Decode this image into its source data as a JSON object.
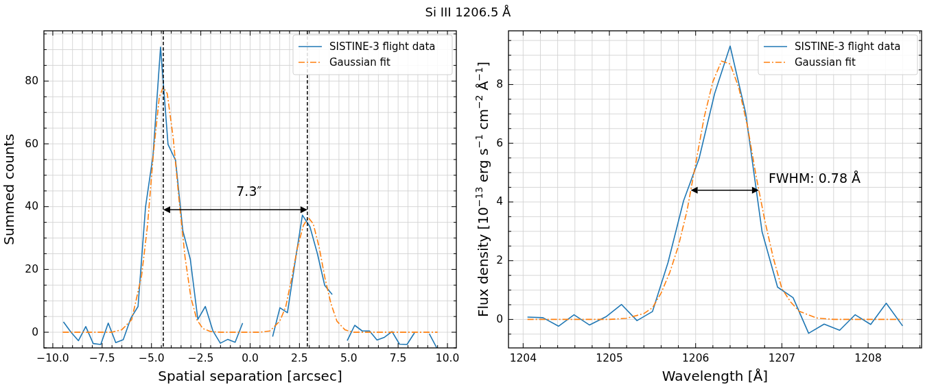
{
  "chart_data": [
    {
      "type": "line",
      "title": "Si III 1206.5 Å",
      "xlabel": "Spatial separation [arcsec]",
      "ylabel": "Summed counts",
      "xlim": [
        -10.45,
        10.45
      ],
      "ylim": [
        -5,
        96
      ],
      "xticks": [
        {
          "value": -10,
          "label": "−10.0"
        },
        {
          "value": -9.5,
          "label": null
        },
        {
          "value": -9,
          "label": null
        },
        {
          "value": -8.5,
          "label": null
        },
        {
          "value": -8,
          "label": null
        },
        {
          "value": -7.5,
          "label": "−7.5"
        },
        {
          "value": -7,
          "label": null
        },
        {
          "value": -6.5,
          "label": null
        },
        {
          "value": -6,
          "label": null
        },
        {
          "value": -5.5,
          "label": null
        },
        {
          "value": -5,
          "label": "−5.0"
        },
        {
          "value": -4.5,
          "label": null
        },
        {
          "value": -4,
          "label": null
        },
        {
          "value": -3.5,
          "label": null
        },
        {
          "value": -3,
          "label": null
        },
        {
          "value": -2.5,
          "label": "−2.5"
        },
        {
          "value": -2,
          "label": null
        },
        {
          "value": -1.5,
          "label": null
        },
        {
          "value": -1,
          "label": null
        },
        {
          "value": -0.5,
          "label": null
        },
        {
          "value": 0,
          "label": "0.0"
        },
        {
          "value": 0.5,
          "label": null
        },
        {
          "value": 1,
          "label": null
        },
        {
          "value": 1.5,
          "label": null
        },
        {
          "value": 2,
          "label": null
        },
        {
          "value": 2.5,
          "label": "2.5"
        },
        {
          "value": 3,
          "label": null
        },
        {
          "value": 3.5,
          "label": null
        },
        {
          "value": 4,
          "label": null
        },
        {
          "value": 4.5,
          "label": null
        },
        {
          "value": 5,
          "label": "5.0"
        },
        {
          "value": 5.5,
          "label": null
        },
        {
          "value": 6,
          "label": null
        },
        {
          "value": 6.5,
          "label": null
        },
        {
          "value": 7,
          "label": null
        },
        {
          "value": 7.5,
          "label": "7.5"
        },
        {
          "value": 8,
          "label": null
        },
        {
          "value": 8.5,
          "label": null
        },
        {
          "value": 9,
          "label": null
        },
        {
          "value": 9.5,
          "label": null
        },
        {
          "value": 10,
          "label": "10.0"
        }
      ],
      "yticks": [
        {
          "value": -5,
          "label": null
        },
        0,
        {
          "value": 5,
          "label": null
        },
        {
          "value": 10,
          "label": null
        },
        {
          "value": 15,
          "label": null
        },
        20,
        {
          "value": 25,
          "label": null
        },
        {
          "value": 30,
          "label": null
        },
        {
          "value": 35,
          "label": null
        },
        40,
        {
          "value": 45,
          "label": null
        },
        {
          "value": 50,
          "label": null
        },
        {
          "value": 55,
          "label": null
        },
        60,
        {
          "value": 65,
          "label": null
        },
        {
          "value": 70,
          "label": null
        },
        {
          "value": 75,
          "label": null
        },
        80,
        {
          "value": 85,
          "label": null
        },
        {
          "value": 90,
          "label": null
        },
        {
          "value": 95,
          "label": null
        }
      ],
      "grid": true,
      "legend": "top right",
      "series": [
        {
          "name": "SISTINE-3 flight data",
          "color": "#1f77b4",
          "line_style": "solid",
          "x": [
            -9.46,
            -9.08,
            -8.7,
            -8.33,
            -7.95,
            -7.57,
            -7.19,
            -6.81,
            -6.43,
            -6.05,
            -5.68,
            -5.3,
            -4.92,
            -4.54,
            -4.16,
            -3.78,
            -3.41,
            -3.03,
            -2.65,
            -2.27,
            -1.89,
            -1.51,
            -1.14,
            -0.76,
            -0.38,
            0.0,
            0.38,
            0.76,
            1.14,
            1.51,
            1.89,
            2.27,
            2.65,
            3.03,
            3.41,
            3.78,
            4.16,
            4.54,
            4.92,
            5.3,
            5.68,
            6.05,
            6.43,
            6.81,
            7.19,
            7.57,
            7.95,
            8.33,
            8.7,
            9.08,
            9.46
          ],
          "values": [
            3.3,
            0,
            -2.7,
            1.8,
            -3.6,
            -3.9,
            2.9,
            -3.3,
            -2.4,
            4.4,
            8.2,
            39.9,
            56.3,
            90.8,
            59.8,
            54.8,
            32.3,
            23.2,
            4.1,
            8.2,
            0.5,
            -3.5,
            -2.3,
            -3.2,
            2.9,
            null,
            null,
            null,
            -1.4,
            7.8,
            6.2,
            22,
            37.3,
            33.6,
            25,
            14.9,
            12,
            null,
            -2.7,
            2.2,
            0.4,
            0.4,
            -2.5,
            -1.6,
            0.2,
            -3.8,
            -3.9,
            -0.2,
            null,
            -0.5,
            -5
          ]
        },
        {
          "name": "Gaussian fit",
          "color": "#ff7f0e",
          "line_style": "dashdot",
          "x": [
            -9.5,
            -7,
            -6.5,
            -6,
            -5.5,
            -5.2,
            -4.9,
            -4.6,
            -4.4,
            -4.2,
            -3.9,
            -3.6,
            -3.3,
            -3.0,
            -2.7,
            -2.4,
            -2,
            -1.5,
            0.5,
            1,
            1.5,
            1.8,
            2.1,
            2.4,
            2.7,
            2.95,
            3.2,
            3.5,
            3.8,
            4.1,
            4.4,
            4.8,
            5.2,
            9.5
          ],
          "values": [
            0,
            0,
            0.8,
            4,
            18,
            34,
            57,
            75,
            78,
            76,
            62,
            42,
            24,
            11,
            4,
            1.2,
            0.2,
            0,
            0,
            0.4,
            3.5,
            8,
            17,
            27,
            34,
            36.5,
            34.5,
            27,
            17,
            9,
            3.5,
            0.8,
            0,
            0
          ]
        }
      ],
      "ref_lines": [
        {
          "axis": "x",
          "value": -4.4,
          "color": "#000000",
          "line_style": "dashed"
        },
        {
          "axis": "x",
          "value": 2.9,
          "color": "#000000",
          "line_style": "dashed"
        }
      ],
      "annotations": [
        "7.3″"
      ]
    },
    {
      "type": "line",
      "xlabel": "Wavelength [Å]",
      "ylabel": "Flux density [10$^{−13}$ erg s$^{−1}$ cm$^{−2}$ Å$^{−1}$]",
      "xlim": [
        1203.83,
        1208.62
      ],
      "ylim": [
        -0.97,
        9.83
      ],
      "xticks": [
        1204,
        {
          "value": 1204.2,
          "label": null
        },
        {
          "value": 1204.4,
          "label": null
        },
        {
          "value": 1204.6,
          "label": null
        },
        {
          "value": 1204.8,
          "label": null
        },
        1205,
        {
          "value": 1205.2,
          "label": null
        },
        {
          "value": 1205.4,
          "label": null
        },
        {
          "value": 1205.6,
          "label": null
        },
        {
          "value": 1205.8,
          "label": null
        },
        1206,
        {
          "value": 1206.2,
          "label": null
        },
        {
          "value": 1206.4,
          "label": null
        },
        {
          "value": 1206.6,
          "label": null
        },
        {
          "value": 1206.8,
          "label": null
        },
        1207,
        {
          "value": 1207.2,
          "label": null
        },
        {
          "value": 1207.4,
          "label": null
        },
        {
          "value": 1207.6,
          "label": null
        },
        {
          "value": 1207.8,
          "label": null
        },
        1208,
        {
          "value": 1208.2,
          "label": null
        },
        {
          "value": 1208.4,
          "label": null
        },
        {
          "value": 1208.6,
          "label": null
        }
      ],
      "yticks": [
        {
          "value": -0.5,
          "label": null
        },
        0,
        {
          "value": 0.5,
          "label": null
        },
        {
          "value": 1,
          "label": null
        },
        {
          "value": 1.5,
          "label": null
        },
        2,
        {
          "value": 2.5,
          "label": null
        },
        {
          "value": 3,
          "label": null
        },
        {
          "value": 3.5,
          "label": null
        },
        4,
        {
          "value": 4.5,
          "label": null
        },
        {
          "value": 5,
          "label": null
        },
        {
          "value": 5.5,
          "label": null
        },
        6,
        {
          "value": 6.5,
          "label": null
        },
        {
          "value": 7,
          "label": null
        },
        {
          "value": 7.5,
          "label": null
        },
        8,
        {
          "value": 8.5,
          "label": null
        },
        {
          "value": 9,
          "label": null
        },
        {
          "value": 9.5,
          "label": null
        }
      ],
      "grid": true,
      "legend": "top right",
      "series": [
        {
          "name": "SISTINE-3 flight data",
          "color": "#1f77b4",
          "line_style": "solid",
          "x": [
            1204.05,
            1204.23,
            1204.41,
            1204.59,
            1204.77,
            1204.96,
            1205.14,
            1205.32,
            1205.5,
            1205.68,
            1205.86,
            1206.04,
            1206.22,
            1206.4,
            1206.58,
            1206.77,
            1206.95,
            1207.13,
            1207.31,
            1207.49,
            1207.67,
            1207.85,
            1208.03,
            1208.21,
            1208.4
          ],
          "values": [
            0.08,
            0.06,
            -0.23,
            0.16,
            -0.19,
            0.09,
            0.51,
            -0.04,
            0.27,
            1.94,
            4.04,
            5.48,
            7.69,
            9.31,
            7.03,
            2.99,
            1.1,
            0.74,
            -0.47,
            -0.16,
            -0.37,
            0.16,
            -0.17,
            0.55,
            -0.22
          ]
        },
        {
          "name": "Gaussian fit",
          "color": "#ff7f0e",
          "line_style": "dashdot",
          "x": [
            1204.05,
            1205.0,
            1205.2,
            1205.4,
            1205.5,
            1205.6,
            1205.7,
            1205.8,
            1205.9,
            1206.0,
            1206.1,
            1206.2,
            1206.3,
            1206.4,
            1206.5,
            1206.6,
            1206.7,
            1206.8,
            1206.9,
            1207.0,
            1207.1,
            1207.2,
            1207.4,
            1207.6,
            1208.4
          ],
          "values": [
            0,
            0,
            0.04,
            0.2,
            0.4,
            0.9,
            1.6,
            2.5,
            3.7,
            5.3,
            6.9,
            8.1,
            8.8,
            8.7,
            7.9,
            6.6,
            4.9,
            3.4,
            2.1,
            1.05,
            0.6,
            0.28,
            0.05,
            0,
            0
          ]
        }
      ],
      "annotations": [
        "FWHM: 0.78 Å"
      ]
    }
  ]
}
